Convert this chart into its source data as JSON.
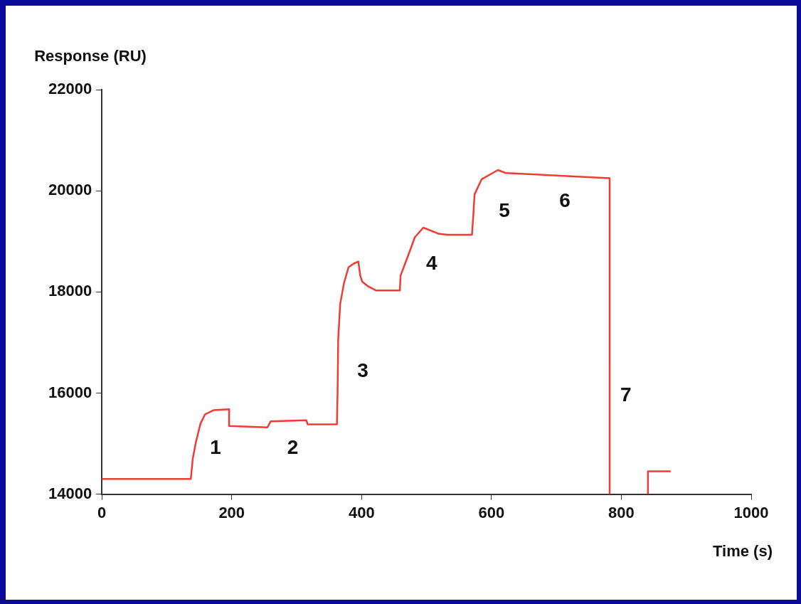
{
  "chart_data": {
    "type": "line",
    "xlabel": "Time (s)",
    "ylabel": "Response (RU)",
    "x": [
      0,
      137,
      140,
      145,
      152,
      159,
      172,
      196,
      196,
      255,
      260,
      315,
      317,
      362,
      363,
      364,
      367,
      373,
      380,
      388,
      395,
      398,
      401,
      410,
      422,
      459,
      460,
      474,
      482,
      495,
      515,
      518,
      533,
      570,
      572,
      574,
      585,
      610,
      622,
      623,
      782,
      782,
      810,
      841,
      841,
      876
    ],
    "series": [
      {
        "color": "#f03c32",
        "values": [
          14300,
          14300,
          14700,
          15040,
          15400,
          15580,
          15660,
          15680,
          15350,
          15320,
          15440,
          15460,
          15380,
          15380,
          16000,
          17060,
          17760,
          18180,
          18490,
          18560,
          18600,
          18320,
          18200,
          18110,
          18030,
          18030,
          18320,
          18800,
          19080,
          19270,
          19170,
          19150,
          19130,
          19130,
          19510,
          19930,
          20230,
          20410,
          20350,
          20350,
          20250,
          14000,
          null,
          14000,
          14450,
          14450
        ]
      }
    ],
    "xlim": [
      0,
      1000
    ],
    "xticks": [
      0,
      200,
      400,
      600,
      800,
      1000
    ],
    "ylim": [
      14000,
      22000
    ],
    "yticks": [
      14000,
      16000,
      18000,
      20000,
      22000
    ],
    "grid": false,
    "legend": false,
    "marker": "none",
    "line_style": "solid",
    "annotations": [
      "1",
      "2",
      "3",
      "4",
      "5",
      "6",
      "7"
    ]
  }
}
